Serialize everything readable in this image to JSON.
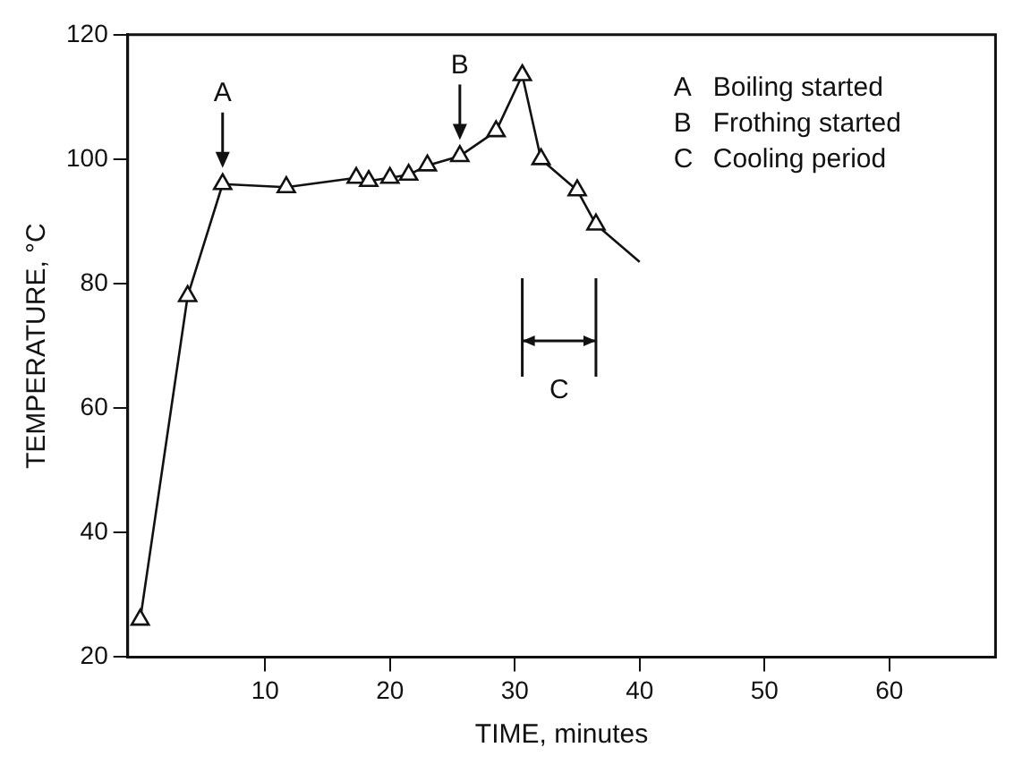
{
  "chart_data": {
    "type": "line",
    "xlabel": "TIME, minutes",
    "ylabel": "TEMPERATURE, °C",
    "x": [
      0,
      3.8,
      6.6,
      11.7,
      17.3,
      18.3,
      20,
      21.5,
      23,
      25.6,
      28.5,
      30.6,
      32.1,
      35,
      36.5
    ],
    "series": [
      {
        "color": "#111111",
        "values": [
          26,
          78,
          96,
          95.5,
          97,
          96.5,
          97,
          97.5,
          99,
          100.5,
          104.5,
          113.5,
          100,
          95,
          89.5
        ]
      },
      {
        "color": "#111111",
        "x": [
          36.5,
          40
        ],
        "values": [
          89.5,
          83.5
        ],
        "marker": "none"
      }
    ],
    "marker": "triangle",
    "line_style": "solid",
    "grid": false,
    "legend": false,
    "xlim": [
      -1,
      68.5
    ],
    "xticks": [
      10,
      20,
      30,
      40,
      50,
      60
    ],
    "ylim": [
      20,
      120
    ],
    "yticks": [
      20,
      40,
      60,
      80,
      100,
      120
    ],
    "annotations": [
      {
        "text": "A",
        "x": 6.6,
        "y": 96
      },
      {
        "text": "B",
        "x": 25.6,
        "y": 100.5
      },
      "C",
      "A   Boiling started",
      "B   Frothing started",
      "C   Cooling period"
    ]
  }
}
